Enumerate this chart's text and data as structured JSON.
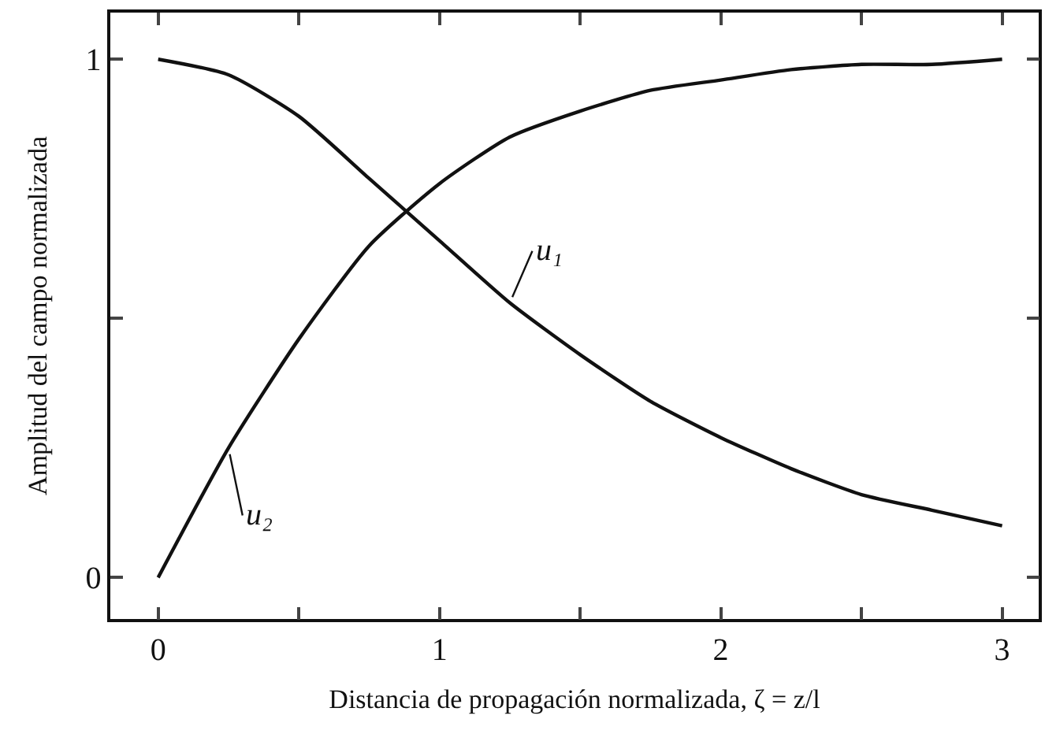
{
  "chart_data": {
    "type": "line",
    "xlabel": "Distancia de propagación normalizada, ζ = z/l",
    "ylabel": "Amplitud del campo normalizada",
    "x": [
      0,
      0.25,
      0.5,
      0.75,
      1,
      1.25,
      1.5,
      1.75,
      2,
      2.25,
      2.5,
      2.75,
      3
    ],
    "series": [
      {
        "name": "u₁",
        "color": "#111111",
        "values": [
          1,
          0.97,
          0.89,
          0.77,
          0.65,
          0.53,
          0.43,
          0.34,
          0.27,
          0.21,
          0.16,
          0.13,
          0.1
        ]
      },
      {
        "name": "u₂",
        "color": "#111111",
        "values": [
          0,
          0.25,
          0.46,
          0.64,
          0.76,
          0.85,
          0.9,
          0.94,
          0.96,
          0.98,
          0.99,
          0.99,
          1
        ]
      }
    ],
    "xlim": [
      -0.17,
      3.13
    ],
    "ylim": [
      -0.08,
      1.09
    ],
    "xticks": [
      0,
      {
        "value": 0.5,
        "label": null
      },
      1,
      {
        "value": 1.5,
        "label": null
      },
      2,
      {
        "value": 2.5,
        "label": null
      },
      3
    ],
    "yticks": [
      0,
      {
        "value": 0.5,
        "label": null
      },
      1
    ],
    "legend": false,
    "marker": "none",
    "line_style": "solid"
  }
}
